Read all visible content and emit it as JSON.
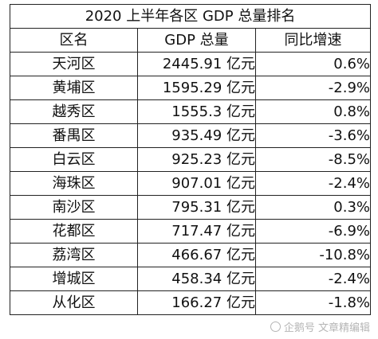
{
  "table": {
    "title": "2020 上半年各区 GDP 总量排名",
    "headers": [
      "区名",
      "GDP 总量",
      "同比增速"
    ],
    "rows": [
      {
        "district": "天河区",
        "gdp": "2445.91 亿元",
        "growth": "0.6%"
      },
      {
        "district": "黄埔区",
        "gdp": "1595.29 亿元",
        "growth": "-2.9%"
      },
      {
        "district": "越秀区",
        "gdp": "1555.3 亿元",
        "growth": "0.8%"
      },
      {
        "district": "番禺区",
        "gdp": "935.49 亿元",
        "growth": "-3.6%"
      },
      {
        "district": "白云区",
        "gdp": "925.23 亿元",
        "growth": "-8.5%"
      },
      {
        "district": "海珠区",
        "gdp": "907.01 亿元",
        "growth": "-2.4%"
      },
      {
        "district": "南沙区",
        "gdp": "795.31 亿元",
        "growth": "0.3%"
      },
      {
        "district": "花都区",
        "gdp": "717.47 亿元",
        "growth": "-6.9%"
      },
      {
        "district": "荔湾区",
        "gdp": "466.67 亿元",
        "growth": "-10.8%"
      },
      {
        "district": "增城区",
        "gdp": "458.34 亿元",
        "growth": "-2.4%"
      },
      {
        "district": "从化区",
        "gdp": "166.27 亿元",
        "growth": "-1.8%"
      }
    ]
  },
  "watermark": {
    "icon": "watermark-logo-icon",
    "text": "企鹅号 文章精编辑"
  }
}
